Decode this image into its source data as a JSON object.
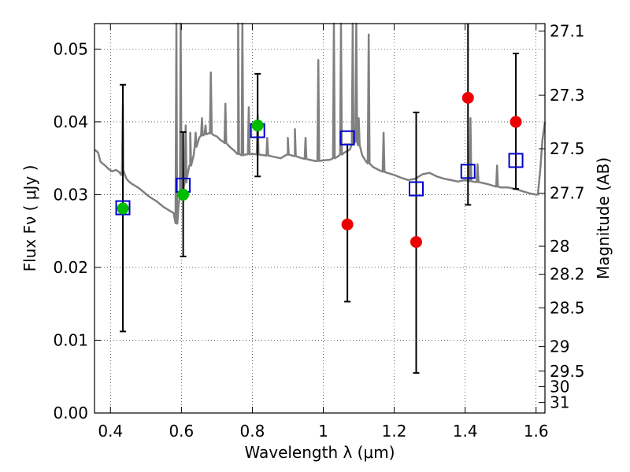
{
  "chart_data": {
    "type": "scatter",
    "xlabel": "Wavelength  λ (μm)",
    "ylabel": "Flux  Fν  ( μJy )",
    "y2label": "Magnitude (AB)",
    "xlim": [
      0.355,
      1.625
    ],
    "ylim": [
      0.0,
      0.0535
    ],
    "x_ticks": [
      0.4,
      0.6,
      0.8,
      1.0,
      1.2,
      1.4,
      1.6
    ],
    "x_tick_labels": [
      "0.4",
      "0.6",
      "0.8",
      "1",
      "1.2",
      "1.4",
      "1.6"
    ],
    "y_ticks": [
      0.0,
      0.01,
      0.02,
      0.03,
      0.04,
      0.05
    ],
    "y_tick_labels": [
      "0.00",
      "0.01",
      "0.02",
      "0.03",
      "0.04",
      "0.05"
    ],
    "y2_ticks": [
      27.1,
      27.3,
      27.5,
      27.7,
      28,
      28.2,
      28.5,
      29,
      29.5,
      30,
      31
    ],
    "y2_tick_labels": [
      "27.1",
      "27.3",
      "27.5",
      "27.7",
      "28",
      "28.2",
      "28.5",
      "29",
      "29.5",
      "30",
      "31"
    ],
    "grid": true,
    "colors": {
      "template": "#808080",
      "model": "#0000cc",
      "detection": "#00bb00",
      "upper": "#ee0000",
      "errorbar": "#000000"
    },
    "series": [
      {
        "style": "line",
        "color": "#808080",
        "points": [
          [
            0.355,
            0.0362
          ],
          [
            0.365,
            0.0358
          ],
          [
            0.372,
            0.0345
          ],
          [
            0.385,
            0.034
          ],
          [
            0.395,
            0.0335
          ],
          [
            0.405,
            0.0332
          ],
          [
            0.415,
            0.0334
          ],
          [
            0.425,
            0.0331
          ],
          [
            0.43,
            0.0327
          ],
          [
            0.436,
            0.0333
          ],
          [
            0.44,
            0.0328
          ],
          [
            0.445,
            0.0322
          ],
          [
            0.452,
            0.0318
          ],
          [
            0.46,
            0.0315
          ],
          [
            0.47,
            0.0312
          ],
          [
            0.48,
            0.0309
          ],
          [
            0.49,
            0.0305
          ],
          [
            0.5,
            0.0301
          ],
          [
            0.51,
            0.0297
          ],
          [
            0.52,
            0.0294
          ],
          [
            0.53,
            0.0291
          ],
          [
            0.54,
            0.0287
          ],
          [
            0.55,
            0.0283
          ],
          [
            0.56,
            0.028
          ],
          [
            0.57,
            0.0277
          ],
          [
            0.578,
            0.0275
          ],
          [
            0.583,
            0.0262
          ],
          [
            0.588,
            0.026
          ],
          [
            0.592,
            0.0285
          ],
          [
            0.596,
            0.0296
          ],
          [
            0.605,
            0.0305
          ],
          [
            0.615,
            0.0322
          ],
          [
            0.625,
            0.034
          ],
          [
            0.635,
            0.0355
          ],
          [
            0.642,
            0.037
          ],
          [
            0.65,
            0.0378
          ],
          [
            0.66,
            0.0382
          ],
          [
            0.67,
            0.0383
          ],
          [
            0.68,
            0.0385
          ],
          [
            0.69,
            0.0382
          ],
          [
            0.7,
            0.038
          ],
          [
            0.71,
            0.0375
          ],
          [
            0.72,
            0.0372
          ],
          [
            0.73,
            0.0369
          ],
          [
            0.74,
            0.0364
          ],
          [
            0.75,
            0.036
          ],
          [
            0.76,
            0.0356
          ],
          [
            0.77,
            0.0354
          ],
          [
            0.78,
            0.0355
          ],
          [
            0.8,
            0.0356
          ],
          [
            0.82,
            0.0355
          ],
          [
            0.84,
            0.0354
          ],
          [
            0.86,
            0.0352
          ],
          [
            0.88,
            0.035
          ],
          [
            0.9,
            0.0355
          ],
          [
            0.92,
            0.0353
          ],
          [
            0.94,
            0.035
          ],
          [
            0.96,
            0.0348
          ],
          [
            0.98,
            0.0346
          ],
          [
            1.0,
            0.0347
          ],
          [
            1.02,
            0.0348
          ],
          [
            1.04,
            0.0352
          ],
          [
            1.06,
            0.0358
          ],
          [
            1.075,
            0.0362
          ],
          [
            1.09,
            0.0375
          ],
          [
            1.1,
            0.0368
          ],
          [
            1.11,
            0.0354
          ],
          [
            1.12,
            0.0346
          ],
          [
            1.14,
            0.0338
          ],
          [
            1.16,
            0.0333
          ],
          [
            1.18,
            0.033
          ],
          [
            1.2,
            0.0327
          ],
          [
            1.22,
            0.0323
          ],
          [
            1.24,
            0.032
          ],
          [
            1.26,
            0.0322
          ],
          [
            1.28,
            0.0328
          ],
          [
            1.3,
            0.033
          ],
          [
            1.32,
            0.0325
          ],
          [
            1.34,
            0.0322
          ],
          [
            1.36,
            0.032
          ],
          [
            1.38,
            0.0318
          ],
          [
            1.4,
            0.032
          ],
          [
            1.42,
            0.0318
          ],
          [
            1.44,
            0.0317
          ],
          [
            1.46,
            0.0315
          ],
          [
            1.48,
            0.0312
          ],
          [
            1.5,
            0.031
          ],
          [
            1.52,
            0.031
          ],
          [
            1.54,
            0.0308
          ],
          [
            1.56,
            0.0305
          ],
          [
            1.58,
            0.0302
          ],
          [
            1.6,
            0.03
          ],
          [
            1.605,
            0.03
          ],
          [
            1.612,
            0.0335
          ],
          [
            1.618,
            0.0375
          ],
          [
            1.625,
            0.04
          ]
        ],
        "spikes": [
          [
            0.435,
            0.0424
          ],
          [
            0.586,
            0.0535
          ],
          [
            0.598,
            0.0535
          ],
          [
            0.612,
            0.0395
          ],
          [
            0.625,
            0.0385
          ],
          [
            0.64,
            0.0385
          ],
          [
            0.658,
            0.0405
          ],
          [
            0.668,
            0.0395
          ],
          [
            0.683,
            0.0468
          ],
          [
            0.724,
            0.0425
          ],
          [
            0.76,
            0.0535
          ],
          [
            0.772,
            0.0535
          ],
          [
            0.79,
            0.042
          ],
          [
            0.815,
            0.041
          ],
          [
            0.842,
            0.0378
          ],
          [
            0.9,
            0.0378
          ],
          [
            0.92,
            0.039
          ],
          [
            0.95,
            0.0378
          ],
          [
            0.986,
            0.0485
          ],
          [
            1.03,
            0.0535
          ],
          [
            1.05,
            0.0535
          ],
          [
            1.083,
            0.0535
          ],
          [
            1.093,
            0.0535
          ],
          [
            1.1,
            0.0405
          ],
          [
            1.128,
            0.052
          ],
          [
            1.17,
            0.0385
          ],
          [
            1.415,
            0.0405
          ],
          [
            1.435,
            0.0342
          ],
          [
            1.49,
            0.034
          ]
        ]
      },
      {
        "style": "open-square",
        "color": "#0000cc",
        "points": [
          [
            0.435,
            0.0282
          ],
          [
            0.605,
            0.0313
          ],
          [
            0.815,
            0.0388
          ],
          [
            1.068,
            0.0378
          ],
          [
            1.262,
            0.0308
          ],
          [
            1.408,
            0.0332
          ],
          [
            1.543,
            0.0347
          ]
        ]
      },
      {
        "style": "filled-circle",
        "color": "#00bb00",
        "points": [
          [
            0.435,
            0.0281
          ],
          [
            0.605,
            0.03
          ],
          [
            0.815,
            0.0395
          ]
        ]
      },
      {
        "style": "filled-circle",
        "color": "#ee0000",
        "points": [
          [
            1.068,
            0.0259
          ],
          [
            1.262,
            0.0235
          ],
          [
            1.408,
            0.0433
          ],
          [
            1.543,
            0.04
          ]
        ]
      },
      {
        "style": "errorbar",
        "color": "#000000",
        "bars": [
          [
            0.435,
            0.0112,
            0.0451
          ],
          [
            0.605,
            0.0215,
            0.0386
          ],
          [
            0.815,
            0.0325,
            0.0466
          ],
          [
            1.068,
            0.0153,
            0.0369
          ],
          [
            1.262,
            0.0055,
            0.0413
          ],
          [
            1.408,
            0.0286,
            0.0535
          ],
          [
            1.543,
            0.0308,
            0.0494
          ]
        ]
      }
    ]
  }
}
